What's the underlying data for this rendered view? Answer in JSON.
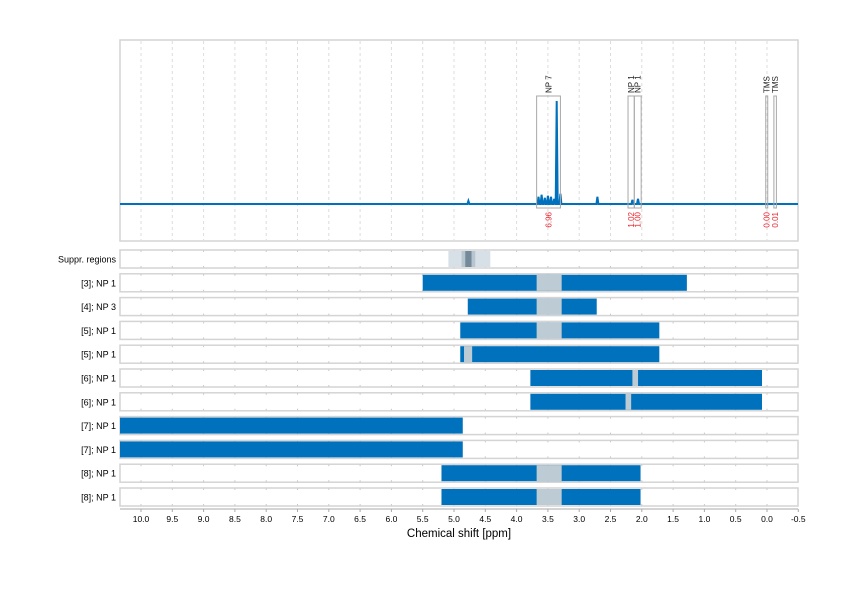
{
  "chart_data": {
    "type": "nmr-spectrum-with-range-bars",
    "title": "",
    "xlabel": "Chemical shift [ppm]",
    "xlim": [
      10.34,
      -0.5
    ],
    "x_reversed": true,
    "x_ticks": [
      10.0,
      9.5,
      9.0,
      8.5,
      8.0,
      7.5,
      7.0,
      6.5,
      6.0,
      5.5,
      5.0,
      4.5,
      4.0,
      3.5,
      3.0,
      2.5,
      2.0,
      1.5,
      1.0,
      0.5,
      0.0,
      -0.5
    ],
    "x_tick_labels": [
      "10.0",
      "9.5",
      "9.0",
      "8.5",
      "8.0",
      "7.5",
      "7.0",
      "6.5",
      "6.0",
      "5.5",
      "5.0",
      "4.5",
      "4.0",
      "3.5",
      "3.0",
      "2.5",
      "2.0",
      "1.5",
      "1.0",
      "0.5",
      "0.0",
      "-0.5"
    ],
    "grid": true,
    "spectrum": {
      "color": "#0071bc",
      "baseline": 0.0,
      "peaks": [
        {
          "ppm": 4.77,
          "height": 0.03
        },
        {
          "ppm": 3.65,
          "height": 0.07
        },
        {
          "ppm": 3.6,
          "height": 0.09
        },
        {
          "ppm": 3.55,
          "height": 0.06
        },
        {
          "ppm": 3.5,
          "height": 0.08
        },
        {
          "ppm": 3.45,
          "height": 0.07
        },
        {
          "ppm": 3.4,
          "height": 0.05
        },
        {
          "ppm": 3.36,
          "height": 1.0
        },
        {
          "ppm": 3.3,
          "height": 0.1
        },
        {
          "ppm": 2.71,
          "height": 0.07
        },
        {
          "ppm": 2.15,
          "height": 0.04
        },
        {
          "ppm": 2.06,
          "height": 0.05
        }
      ]
    },
    "integration_regions": [
      {
        "label": "NP 7",
        "ppm_start": 3.68,
        "ppm_end": 3.3,
        "integral": "6.96"
      },
      {
        "label": "NP 1",
        "ppm_start": 2.22,
        "ppm_end": 2.12,
        "integral": "1.02"
      },
      {
        "label": "NP 1",
        "ppm_start": 2.12,
        "ppm_end": 2.01,
        "integral": "1.00"
      },
      {
        "label": "TMS",
        "ppm_start": 0.02,
        "ppm_end": -0.01,
        "integral": "0.00"
      },
      {
        "label": "TMS",
        "ppm_start": -0.11,
        "ppm_end": -0.15,
        "integral": "0.01"
      }
    ],
    "integral_color": "#e8242c",
    "suppressed_regions": {
      "label": "Suppr. regions",
      "bands": [
        {
          "ppm_start": 5.09,
          "ppm_end": 4.42,
          "shade": "light"
        },
        {
          "ppm_start": 4.88,
          "ppm_end": 4.66,
          "shade": "mid"
        },
        {
          "ppm_start": 4.82,
          "ppm_end": 4.72,
          "shade": "dark"
        }
      ]
    },
    "rows": [
      {
        "label": "[3]; NP 1",
        "ppm_start": 5.5,
        "ppm_end": 1.28,
        "gaps": [
          {
            "ppm_start": 3.68,
            "ppm_end": 3.28
          }
        ]
      },
      {
        "label": "[4]; NP 3",
        "ppm_start": 4.78,
        "ppm_end": 2.72,
        "gaps": [
          {
            "ppm_start": 3.68,
            "ppm_end": 3.28
          }
        ]
      },
      {
        "label": "[5]; NP 1",
        "ppm_start": 4.9,
        "ppm_end": 1.72,
        "gaps": [
          {
            "ppm_start": 3.68,
            "ppm_end": 3.28
          }
        ]
      },
      {
        "label": "[5]; NP 1",
        "ppm_start": 4.9,
        "ppm_end": 1.72,
        "gaps": [
          {
            "ppm_start": 4.84,
            "ppm_end": 4.71
          }
        ]
      },
      {
        "label": "[6]; NP 1",
        "ppm_start": 3.78,
        "ppm_end": 0.08,
        "gaps": [
          {
            "ppm_start": 2.15,
            "ppm_end": 2.06
          }
        ]
      },
      {
        "label": "[6]; NP 1",
        "ppm_start": 3.78,
        "ppm_end": 0.08,
        "gaps": [
          {
            "ppm_start": 2.26,
            "ppm_end": 2.17
          }
        ]
      },
      {
        "label": "[7]; NP 1",
        "ppm_start": 10.34,
        "ppm_end": 4.86,
        "gaps": []
      },
      {
        "label": "[7]; NP 1",
        "ppm_start": 10.34,
        "ppm_end": 4.86,
        "gaps": []
      },
      {
        "label": "[8]; NP 1",
        "ppm_start": 5.2,
        "ppm_end": 2.02,
        "gaps": [
          {
            "ppm_start": 3.68,
            "ppm_end": 3.28
          }
        ]
      },
      {
        "label": "[8]; NP 1",
        "ppm_start": 5.2,
        "ppm_end": 2.02,
        "gaps": [
          {
            "ppm_start": 3.68,
            "ppm_end": 3.28
          }
        ]
      }
    ],
    "colors": {
      "bar": "#0071bc",
      "gap": "#bccbd4",
      "suppr_light": "#d8e0e7",
      "suppr_mid": "#b7c5cf",
      "suppr_dark": "#74899a",
      "frame": "#d4d4d4",
      "box": "#a8a8a8",
      "grid": "#dcdcdc"
    }
  }
}
